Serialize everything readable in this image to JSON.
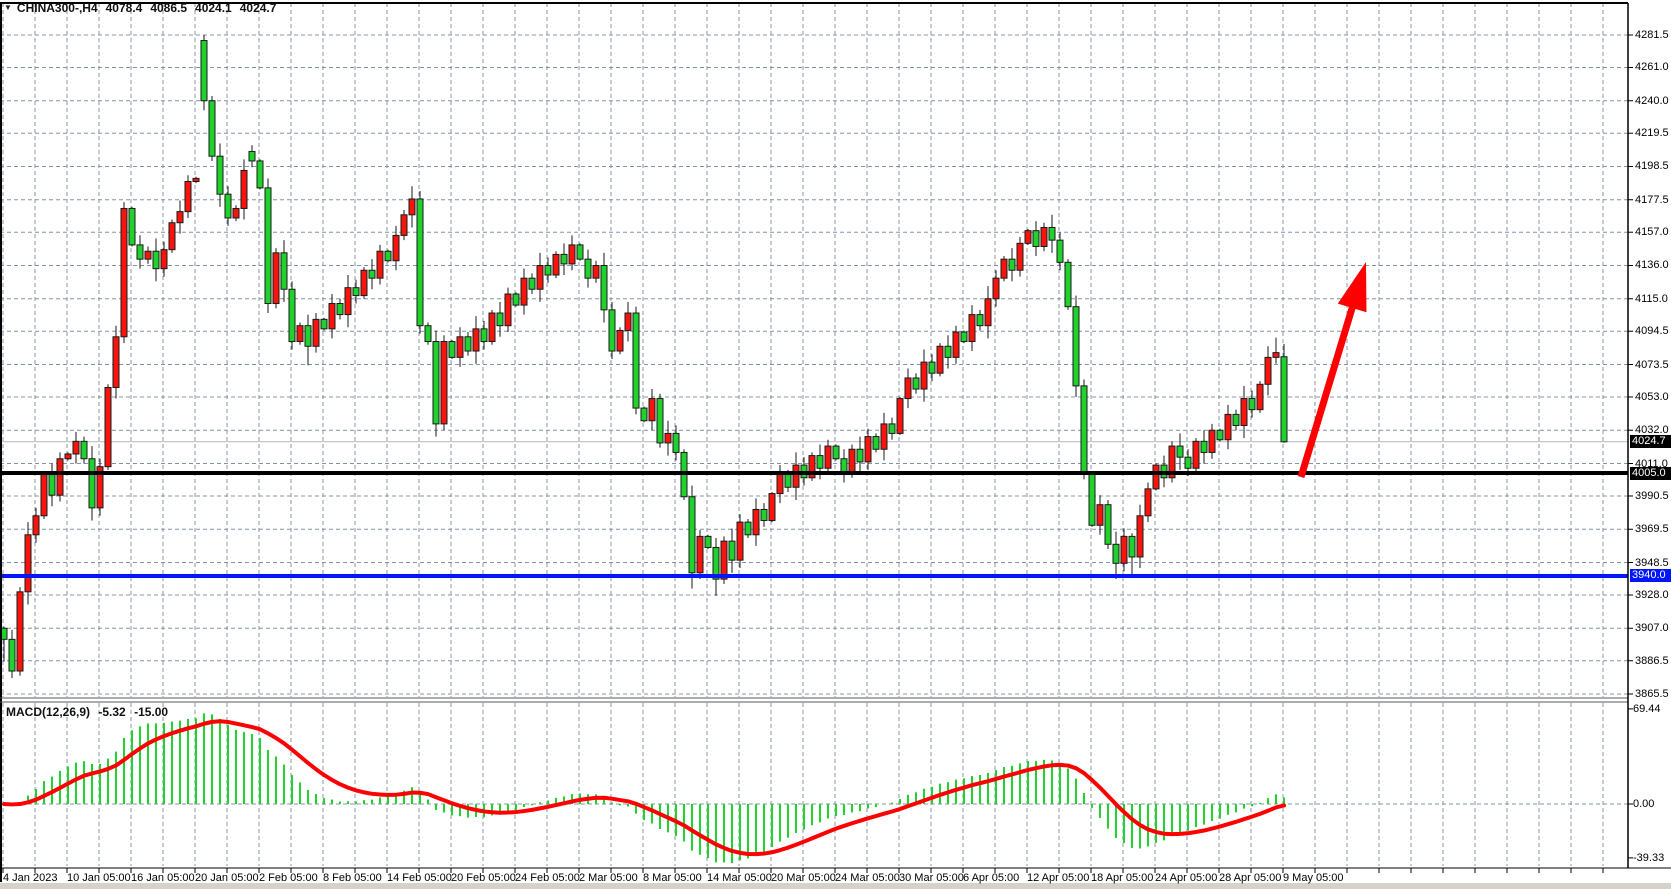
{
  "header": {
    "symbol_tf": "CHINA300-,H4",
    "open": "4078.4",
    "high": "4086.5",
    "low": "4024.1",
    "close": "4024.7"
  },
  "price_axis": {
    "current_tag": "4024.7",
    "black_line_tag": "4005.0",
    "blue_line_tag": "3940.0",
    "labels": [
      "4281.5",
      "4261.0",
      "4240.0",
      "4219.5",
      "4198.5",
      "4177.5",
      "4157.0",
      "4136.0",
      "4115.0",
      "4094.5",
      "4073.5",
      "4053.0",
      "4032.0",
      "4011.0",
      "3990.5",
      "3969.5",
      "3948.5",
      "3928.0",
      "3907.0",
      "3886.5",
      "3865.5"
    ],
    "tick_values": [
      4281.5,
      4261.0,
      4240.0,
      4219.5,
      4198.5,
      4177.5,
      4157.0,
      4136.0,
      4115.0,
      4094.5,
      4073.5,
      4053.0,
      4032.0,
      4011.0,
      3990.5,
      3969.5,
      3948.5,
      3928.0,
      3907.0,
      3886.5,
      3865.5
    ]
  },
  "time_axis": {
    "labels": [
      "4 Jan 2023",
      "10 Jan 05:00",
      "16 Jan 05:00",
      "20 Jan 05:00",
      "2 Feb 05:00",
      "8 Feb 05:00",
      "14 Feb 05:00",
      "20 Feb 05:00",
      "24 Feb 05:00",
      "2 Mar 05:00",
      "8 Mar 05:00",
      "14 Mar 05:00",
      "20 Mar 05:00",
      "24 Mar 05:00",
      "30 Mar 05:00",
      "6 Apr 05:00",
      "12 Apr 05:00",
      "18 Apr 05:00",
      "24 Apr 05:00",
      "28 Apr 05:00",
      "9 May 05:00"
    ]
  },
  "macd_panel": {
    "label": "MACD(12,26,9)",
    "main_value": "-5.32",
    "signal_value": "-15.00",
    "axis_labels": [
      "69.44",
      "0.00",
      "-39.33"
    ],
    "axis_values": [
      69.44,
      0,
      -39.33
    ]
  },
  "colors": {
    "bull_candle": "#f6150d",
    "bear_candle": "#1ed32b",
    "grid": "#8494a8",
    "signal_line": "#ff0000",
    "histogram": "#1ed32b",
    "support_line": "#0016ff",
    "resistance_line": "#000000",
    "arrow": "#ff0000"
  },
  "chart_data": {
    "type": "candlestick",
    "symbol": "CHINA300-",
    "timeframe": "H4",
    "convention": "red=bullish, green=bearish",
    "last_bar": {
      "open": 4078.4,
      "high": 4086.5,
      "low": 4024.1,
      "close": 4024.7
    },
    "hlines": {
      "resistance_black": 4005.0,
      "support_blue": 3940.0,
      "current_price": 4024.7
    },
    "price_range_shown": [
      3865.5,
      4281.5
    ],
    "closes": [
      3900,
      3880,
      3930,
      3966,
      3978,
      4004,
      3991,
      4014,
      4017,
      4025,
      4014,
      3983,
      4009,
      4059,
      4091,
      4172,
      4149,
      4140,
      4145,
      4134,
      4146,
      4163,
      4170,
      4189,
      4191,
      4240,
      4205,
      4181,
      4166,
      4172,
      4196,
      4202,
      4185,
      4112,
      4144,
      4121,
      4088,
      4098,
      4085,
      4102,
      4096,
      4112,
      4105,
      4122,
      4117,
      4133,
      4128,
      4145,
      4139,
      4155,
      4168,
      4178,
      4098,
      4088,
      4036,
      4088,
      4078,
      4091,
      4082,
      4096,
      4088,
      4106,
      4098,
      4118,
      4111,
      4128,
      4121,
      4136,
      4130,
      4143,
      4137,
      4149,
      4140,
      4128,
      4136,
      4108,
      4082,
      4095,
      4106,
      4046,
      4038,
      4052,
      4024,
      4030,
      4018,
      3990,
      3942,
      3965,
      3958,
      3938,
      3962,
      3950,
      3974,
      3966,
      3982,
      3975,
      3992,
      4004,
      3996,
      4010,
      4002,
      4016,
      4008,
      4022,
      4014,
      4005,
      4020,
      4012,
      4028,
      4020,
      4036,
      4030,
      4052,
      4065,
      4058,
      4075,
      4068,
      4085,
      4078,
      4094,
      4088,
      4105,
      4098,
      4115,
      4128,
      4140,
      4133,
      4150,
      4158,
      4148,
      4160,
      4152,
      4138,
      4110,
      4060,
      4005,
      3972,
      3985,
      3960,
      3948,
      3965,
      3952,
      3978,
      3995,
      4010,
      4002,
      4022,
      4015,
      4008,
      4025,
      4018,
      4032,
      4026,
      4042,
      4035,
      4052,
      4045,
      4061,
      4078,
      4081,
      4024.7
    ],
    "open_overrides": {
      "0": 3907,
      "25": 4278,
      "31": 4208,
      "160": 4078.4
    },
    "high_overrides": {
      "25": 4281.5,
      "71": 4155,
      "159": 4090.5,
      "160": 4086.5
    },
    "low_overrides": {
      "0": 3886,
      "1": 3875.5,
      "38": 4073,
      "54": 4028,
      "86": 3932,
      "89": 3927.5,
      "139": 3938,
      "141": 3940.5,
      "160": 4024.1
    },
    "macd": {
      "params": [
        12,
        26,
        9
      ],
      "last_main": -5.32,
      "last_signal": -15.0,
      "axis_max": 69.44,
      "axis_min": -39.33
    },
    "annotation_arrow": {
      "tail": [
        1301,
        477
      ],
      "tip": [
        1366,
        262
      ]
    }
  }
}
